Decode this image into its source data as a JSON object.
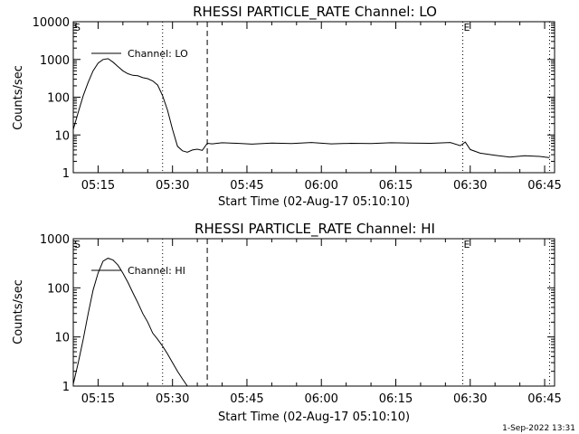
{
  "footer": {
    "timestamp": "1-Sep-2022 13:31"
  },
  "chart_data": [
    {
      "type": "line",
      "title": "RHESSI PARTICLE_RATE Channel: LO",
      "xlabel": "Start Time (02-Aug-17 05:10:10)",
      "ylabel": "Counts/sec",
      "yscale": "log",
      "ylim": [
        1,
        10000
      ],
      "xlim_minutes": [
        0,
        97
      ],
      "x_tick_labels": [
        "05:15",
        "05:30",
        "05:45",
        "06:00",
        "06:15",
        "06:30",
        "06:45"
      ],
      "x_tick_minutes": [
        5,
        20,
        35,
        50,
        65,
        80,
        95
      ],
      "y_tick_labels": [
        "1",
        "10",
        "100",
        "1000",
        "10000"
      ],
      "y_tick_values": [
        1,
        10,
        100,
        1000,
        10000
      ],
      "legend": {
        "label": "Channel: LO",
        "placement": "top-left"
      },
      "markers": [
        {
          "label": "S",
          "minute": 0,
          "style": "none"
        },
        {
          "label": "",
          "minute": 18.0,
          "style": "dotted"
        },
        {
          "label": "",
          "minute": 27.0,
          "style": "dashed"
        },
        {
          "label": "E",
          "minute": 78.5,
          "style": "dotted"
        },
        {
          "label": "",
          "minute": 96.0,
          "style": "dotted"
        }
      ],
      "series": [
        {
          "name": "Channel: LO",
          "x_minutes": [
            0,
            1,
            2,
            3,
            4,
            5,
            6,
            7,
            8,
            9,
            10,
            11,
            12,
            13,
            14,
            15,
            16,
            17,
            18,
            19,
            20,
            21,
            22,
            23,
            24,
            25,
            26,
            27,
            28,
            30,
            33,
            36,
            40,
            44,
            48,
            52,
            56,
            60,
            64,
            68,
            72,
            76,
            78,
            79,
            80,
            82,
            85,
            88,
            91,
            94,
            96
          ],
          "values": [
            14,
            40,
            110,
            250,
            500,
            800,
            1000,
            1050,
            850,
            650,
            500,
            420,
            380,
            370,
            330,
            310,
            270,
            210,
            110,
            45,
            14,
            5,
            3.8,
            3.5,
            4,
            4.2,
            3.9,
            6,
            5.8,
            6.2,
            6,
            5.7,
            6.1,
            5.9,
            6.3,
            5.8,
            6,
            5.9,
            6.2,
            6.1,
            6,
            6.3,
            5.2,
            6.5,
            4.1,
            3.3,
            2.9,
            2.6,
            2.8,
            2.7,
            2.5
          ]
        }
      ]
    },
    {
      "type": "line",
      "title": "RHESSI PARTICLE_RATE Channel: HI",
      "xlabel": "Start Time (02-Aug-17 05:10:10)",
      "ylabel": "Counts/sec",
      "yscale": "log",
      "ylim": [
        1,
        1000
      ],
      "xlim_minutes": [
        0,
        97
      ],
      "x_tick_labels": [
        "05:15",
        "05:30",
        "05:45",
        "06:00",
        "06:15",
        "06:30",
        "06:45"
      ],
      "x_tick_minutes": [
        5,
        20,
        35,
        50,
        65,
        80,
        95
      ],
      "y_tick_labels": [
        "1",
        "10",
        "100",
        "1000"
      ],
      "y_tick_values": [
        1,
        10,
        100,
        1000
      ],
      "legend": {
        "label": "Channel: HI",
        "placement": "top-left"
      },
      "markers": [
        {
          "label": "S",
          "minute": 0,
          "style": "none"
        },
        {
          "label": "",
          "minute": 18.0,
          "style": "dotted"
        },
        {
          "label": "",
          "minute": 27.0,
          "style": "dashed"
        },
        {
          "label": "E",
          "minute": 78.5,
          "style": "dotted"
        },
        {
          "label": "",
          "minute": 96.0,
          "style": "dotted"
        }
      ],
      "series": [
        {
          "name": "Channel: HI",
          "x_minutes": [
            0,
            1,
            2,
            3,
            4,
            5,
            6,
            7,
            8,
            9,
            10,
            11,
            12,
            13,
            14,
            15,
            16,
            17,
            18,
            19,
            20,
            21,
            22,
            23
          ],
          "values": [
            1.1,
            3,
            9,
            30,
            90,
            200,
            350,
            400,
            370,
            290,
            200,
            130,
            80,
            50,
            30,
            20,
            12,
            9,
            6.5,
            4.5,
            3,
            2,
            1.4,
            1
          ]
        }
      ]
    }
  ]
}
